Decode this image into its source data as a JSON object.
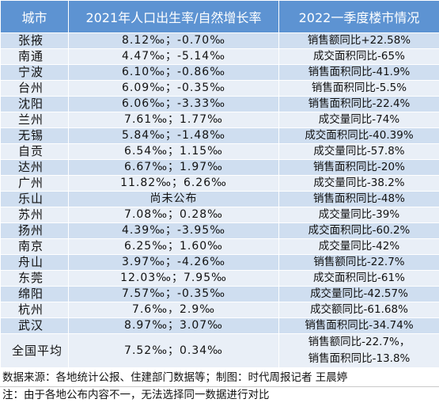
{
  "header": {
    "col1": "城市",
    "col2": "2021年人口出生率/自然增长率",
    "col3": "2022一季度楼市情况"
  },
  "rows": [
    {
      "city": "张掖",
      "rate": "8.12‰；-0.70‰",
      "market": "销售额同比+22.58%"
    },
    {
      "city": "南通",
      "rate": "4.47‰；-5.14‰",
      "market": "成交面积同比-65%"
    },
    {
      "city": "宁波",
      "rate": "6.10‰；-0.86‰",
      "market": "销售面积同比-41.9%"
    },
    {
      "city": "台州",
      "rate": "6.09‰；-0.35‰",
      "market": "销售面积同比-5.5%"
    },
    {
      "city": "沈阳",
      "rate": "6.06‰；-3.33‰",
      "market": "销售面积同比-22.4%"
    },
    {
      "city": "兰州",
      "rate": "7.61‰；1.77‰",
      "market": "成交量同比-74%"
    },
    {
      "city": "无锡",
      "rate": "5.84‰；-1.48‰",
      "market": "成交面积同比-40.39%"
    },
    {
      "city": "自贡",
      "rate": "6.54‰；1.15‰",
      "market": "成交量同比-57.8%"
    },
    {
      "city": "达州",
      "rate": "6.67‰；1.97‰",
      "market": "销售面积同比-20%"
    },
    {
      "city": "广州",
      "rate": "11.82‰；6.26‰",
      "market": "成交量同比-38.2%"
    },
    {
      "city": "乐山",
      "rate": "尚未公布",
      "market": "销售面积同比-48%"
    },
    {
      "city": "苏州",
      "rate": "7.08‰；0.28‰",
      "market": "成交量同比-39%"
    },
    {
      "city": "扬州",
      "rate": "4.39‰；-3.95‰",
      "market": "成交面积同比-60.2%"
    },
    {
      "city": "南京",
      "rate": "6.25‰；1.60‰",
      "market": "成交量同比-42%"
    },
    {
      "city": "舟山",
      "rate": "3.97‰；-4.26‰",
      "market": "销售额同比-22.7%"
    },
    {
      "city": "东莞",
      "rate": "12.03‰；7.95‰",
      "market": "成交面积同比-61%"
    },
    {
      "city": "绵阳",
      "rate": "7.57‰；-0.35‰",
      "market": "成交量同比-42.57%"
    },
    {
      "city": "杭州",
      "rate": "7.6‰，2.9‰",
      "market": "成交额同比-61.68%"
    },
    {
      "city": "武汉",
      "rate": "8.97‰；3.07‰",
      "market": "销售面积同比-34.74%"
    }
  ],
  "average": {
    "city": "全国平均",
    "rate": "7.52‰；0.34‰",
    "market_line1": "销售额同比-22.7%，",
    "market_line2": "销售面积同比-13.8%"
  },
  "footer": {
    "source": "数据来源：各地统计公报、住建部门数据等；制图：时代周报记者 王晨婷",
    "note": "注：由于各地公布内容不一，无法选择同一数据进行对比"
  }
}
